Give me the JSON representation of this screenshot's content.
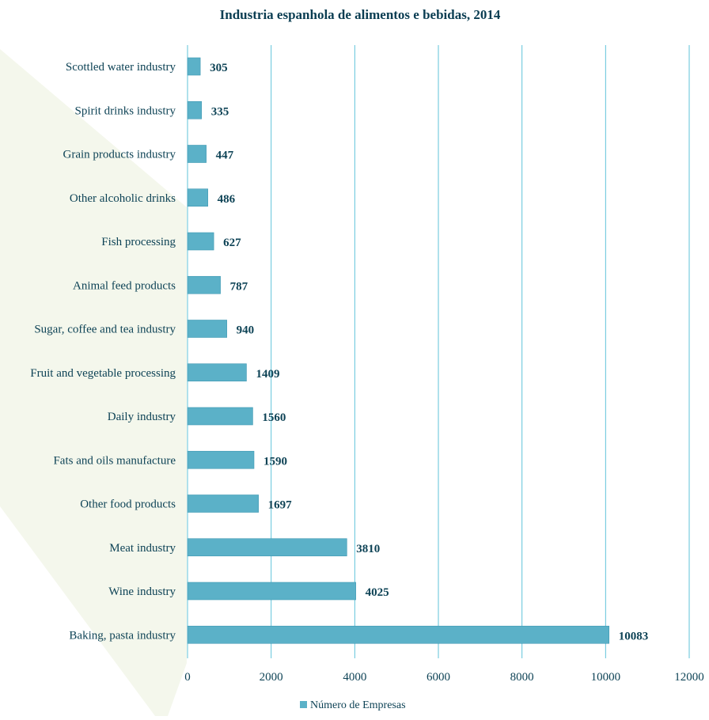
{
  "chart_data": {
    "type": "bar",
    "orientation": "horizontal",
    "title": "Industria espanhola de alimentos e bebidas, 2014",
    "xlabel": "",
    "ylabel": "",
    "categories": [
      "Scottled water industry",
      "Spirit drinks industry",
      "Grain products industry",
      "Other alcoholic drinks",
      "Fish processing",
      "Animal feed products",
      "Sugar, coffee and tea industry",
      "Fruit and vegetable processing",
      "Daily industry",
      "Fats and oils manufacture",
      "Other food products",
      "Meat industry",
      "Wine industry",
      "Baking, pasta industry"
    ],
    "series": [
      {
        "name": "Número de Empresas",
        "values": [
          305,
          335,
          447,
          486,
          627,
          787,
          940,
          1409,
          1560,
          1590,
          1697,
          3810,
          4025,
          10083
        ]
      }
    ],
    "xlim": [
      0,
      12000
    ],
    "xticks": [
      0,
      2000,
      4000,
      6000,
      8000,
      10000,
      12000
    ],
    "grid": "vertical",
    "legend": "bottom",
    "data_labels": true,
    "colors": {
      "bar": "#5bb1c8",
      "bar_stroke": "#3f98b2",
      "gridline": "#5fc3da",
      "text": "#0e4356",
      "background_band": "#f4f7ec"
    }
  }
}
